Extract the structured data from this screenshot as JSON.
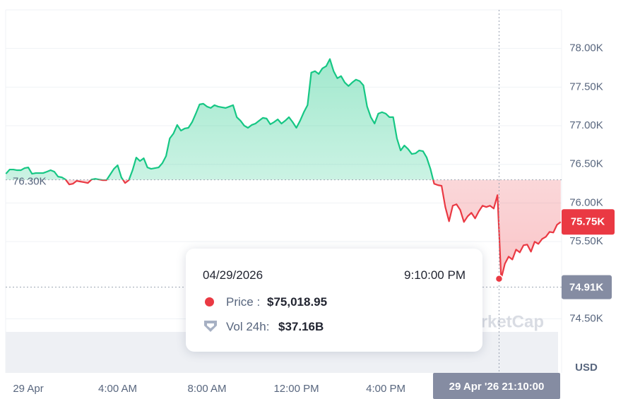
{
  "chart_data": {
    "type": "line",
    "watermark": "CoinMarketCap",
    "y_unit": "USD",
    "color_up": "#16c784",
    "color_down": "#ea3943",
    "ylim": [
      73800,
      78500
    ],
    "yticks": [
      {
        "value": 74500,
        "label": "74.50K"
      },
      {
        "value": 75500,
        "label": "75.50K"
      },
      {
        "value": 76000,
        "label": "76.00K"
      },
      {
        "value": 76500,
        "label": "76.50K"
      },
      {
        "value": 77000,
        "label": "77.00K"
      },
      {
        "value": 77500,
        "label": "77.50K"
      },
      {
        "value": 78000,
        "label": "78.00K"
      }
    ],
    "baseline": {
      "value": 76300,
      "label": "76.30K"
    },
    "current_price": {
      "value": 75754,
      "label": "75.75K"
    },
    "crosshair": {
      "x_label": "29 Apr '26 21:10:00",
      "y": {
        "value": 74910,
        "label": "74.91K"
      }
    },
    "categories": [
      null,
      null,
      null,
      null,
      null,
      null,
      "29 Apr",
      null,
      null,
      null,
      null,
      null,
      null,
      null,
      null,
      null,
      null,
      null,
      null,
      null,
      null,
      null,
      null,
      null,
      null,
      null,
      null,
      null,
      null,
      null,
      "4:00 AM",
      null,
      null,
      null,
      null,
      null,
      null,
      null,
      null,
      null,
      null,
      null,
      null,
      null,
      null,
      null,
      null,
      null,
      null,
      null,
      null,
      null,
      null,
      null,
      "8:00 AM",
      null,
      null,
      null,
      null,
      null,
      null,
      null,
      null,
      null,
      null,
      null,
      null,
      null,
      null,
      null,
      null,
      null,
      null,
      null,
      null,
      null,
      null,
      null,
      "12:00 PM",
      null,
      null,
      null,
      null,
      null,
      null,
      null,
      null,
      null,
      null,
      null,
      null,
      null,
      null,
      null,
      null,
      null,
      null,
      null,
      null,
      null,
      null,
      null,
      "4:00 PM",
      null,
      null,
      null,
      null,
      null,
      null,
      null,
      null,
      null,
      null,
      null,
      null,
      null,
      null,
      null,
      null,
      null,
      null,
      null,
      null,
      null,
      null,
      null,
      null,
      null,
      null,
      null,
      null,
      null,
      null,
      null,
      null,
      null,
      null,
      null,
      null,
      null,
      null,
      null,
      null,
      null,
      null,
      null,
      null,
      null,
      null,
      null
    ],
    "values": [
      76378,
      76433,
      76433,
      76424,
      76424,
      76451,
      76460,
      76378,
      76387,
      76387,
      76387,
      76405,
      76424,
      76405,
      76341,
      76332,
      76304,
      76240,
      76249,
      76286,
      76277,
      76268,
      76258,
      76304,
      76313,
      76304,
      76295,
      76295,
      76368,
      76442,
      76488,
      76332,
      76258,
      76295,
      76424,
      76588,
      76543,
      76579,
      76460,
      76442,
      76451,
      76460,
      76515,
      76607,
      76836,
      76900,
      77010,
      76937,
      76964,
      76973,
      77047,
      77157,
      77276,
      77285,
      77248,
      77230,
      77267,
      77248,
      77239,
      77230,
      77248,
      77267,
      77111,
      77065,
      77001,
      76973,
      77010,
      77028,
      77065,
      77102,
      77093,
      77019,
      77047,
      77083,
      77028,
      77065,
      77111,
      77047,
      76973,
      77065,
      77175,
      77267,
      77688,
      77707,
      77670,
      77743,
      77771,
      77863,
      77707,
      77615,
      77643,
      77560,
      77514,
      77560,
      77597,
      77578,
      77523,
      77248,
      77111,
      77028,
      77157,
      77175,
      77157,
      77111,
      77111,
      76836,
      76680,
      76744,
      76698,
      76634,
      76643,
      76680,
      76671,
      76588,
      76442,
      76249,
      76231,
      76222,
      75947,
      75763,
      75965,
      75983,
      75910,
      75754,
      75827,
      75873,
      75800,
      75892,
      75965,
      75947,
      75965,
      75928,
      76102,
      75018.95,
      75213,
      75305,
      75268,
      75397,
      75360,
      75452,
      75461,
      75369,
      75498,
      75470,
      75534,
      75562,
      75626,
      75617,
      75718,
      75754
    ]
  },
  "tooltip": {
    "date": "04/29/2026",
    "time": "9:10:00 PM",
    "price_label": "Price :",
    "price": "$75,018.95",
    "volume_label": "Vol 24h:",
    "volume": "$37.16B"
  }
}
